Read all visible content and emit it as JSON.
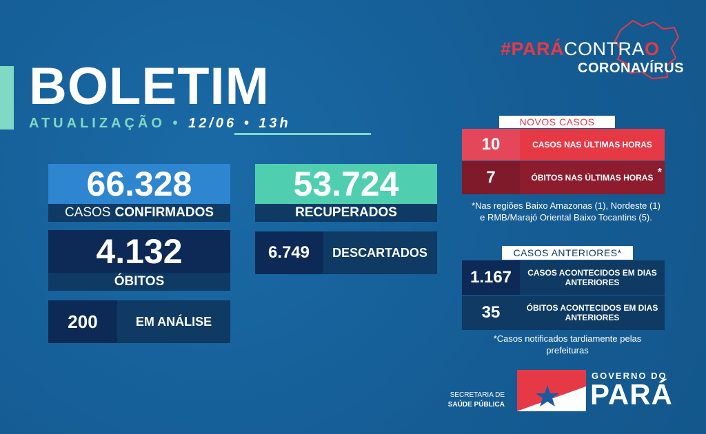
{
  "header": {
    "title": "BOLETIM",
    "update_label": "ATUALIZAÇÃO",
    "separator": "•",
    "date": "12/06",
    "time": "13h"
  },
  "brand": {
    "hash_red": "#PARÁ",
    "hash_white": "CONTRA",
    "hash_o": "O",
    "sub": "CORONAVÍRUS"
  },
  "stats": {
    "confirmed": {
      "value": "66.328",
      "label_light": "CASOS",
      "label_bold": "CONFIRMADOS"
    },
    "deaths": {
      "value": "4.132",
      "label": "ÓBITOS"
    },
    "analysis": {
      "value": "200",
      "label": "EM ANÁLISE"
    },
    "recovered": {
      "value": "53.724",
      "label": "RECUPERADOS"
    },
    "discarded": {
      "value": "6.749",
      "label": "DESCARTADOS"
    }
  },
  "new_cases": {
    "tab": "NOVOS CASOS",
    "cases": {
      "value": "10",
      "label": "CASOS NAS ÚLTIMAS HORAS"
    },
    "deaths": {
      "value": "7",
      "label": "ÓBITOS NAS ÚLTIMAS HORAS",
      "mark": "*"
    },
    "note": "*Nas regiões Baixo Amazonas (1), Nordeste (1) e RMB/Marajó Oriental Baixo Tocantins (5)."
  },
  "previous_cases": {
    "tab": "CASOS ANTERIORES*",
    "cases": {
      "value": "1.167",
      "label": "CASOS ACONTECIDOS EM DIAS ANTERIORES"
    },
    "deaths": {
      "value": "35",
      "label": "ÓBITOS ACONTECIDOS EM DIAS ANTERIORES"
    },
    "note": "*Casos notificados tardiamente pelas prefeituras"
  },
  "footer": {
    "secretaria_line1": "SECRETARIA DE",
    "secretaria_line2": "SAÚDE PÚBLICA",
    "gov_top": "GOVERNO DO",
    "gov_name": "PARÁ"
  },
  "colors": {
    "background": "#17609a",
    "accent_teal": "#7fd9c4",
    "confirmed_blue": "#2e86d0",
    "recovered_teal": "#4fcfb0",
    "navy": "#0c2a55",
    "alert_red": "#e63946",
    "dark_red": "#8c1c2e"
  },
  "icons": {
    "state_map": "para-map-outline-icon",
    "flag": "para-flag-icon"
  }
}
